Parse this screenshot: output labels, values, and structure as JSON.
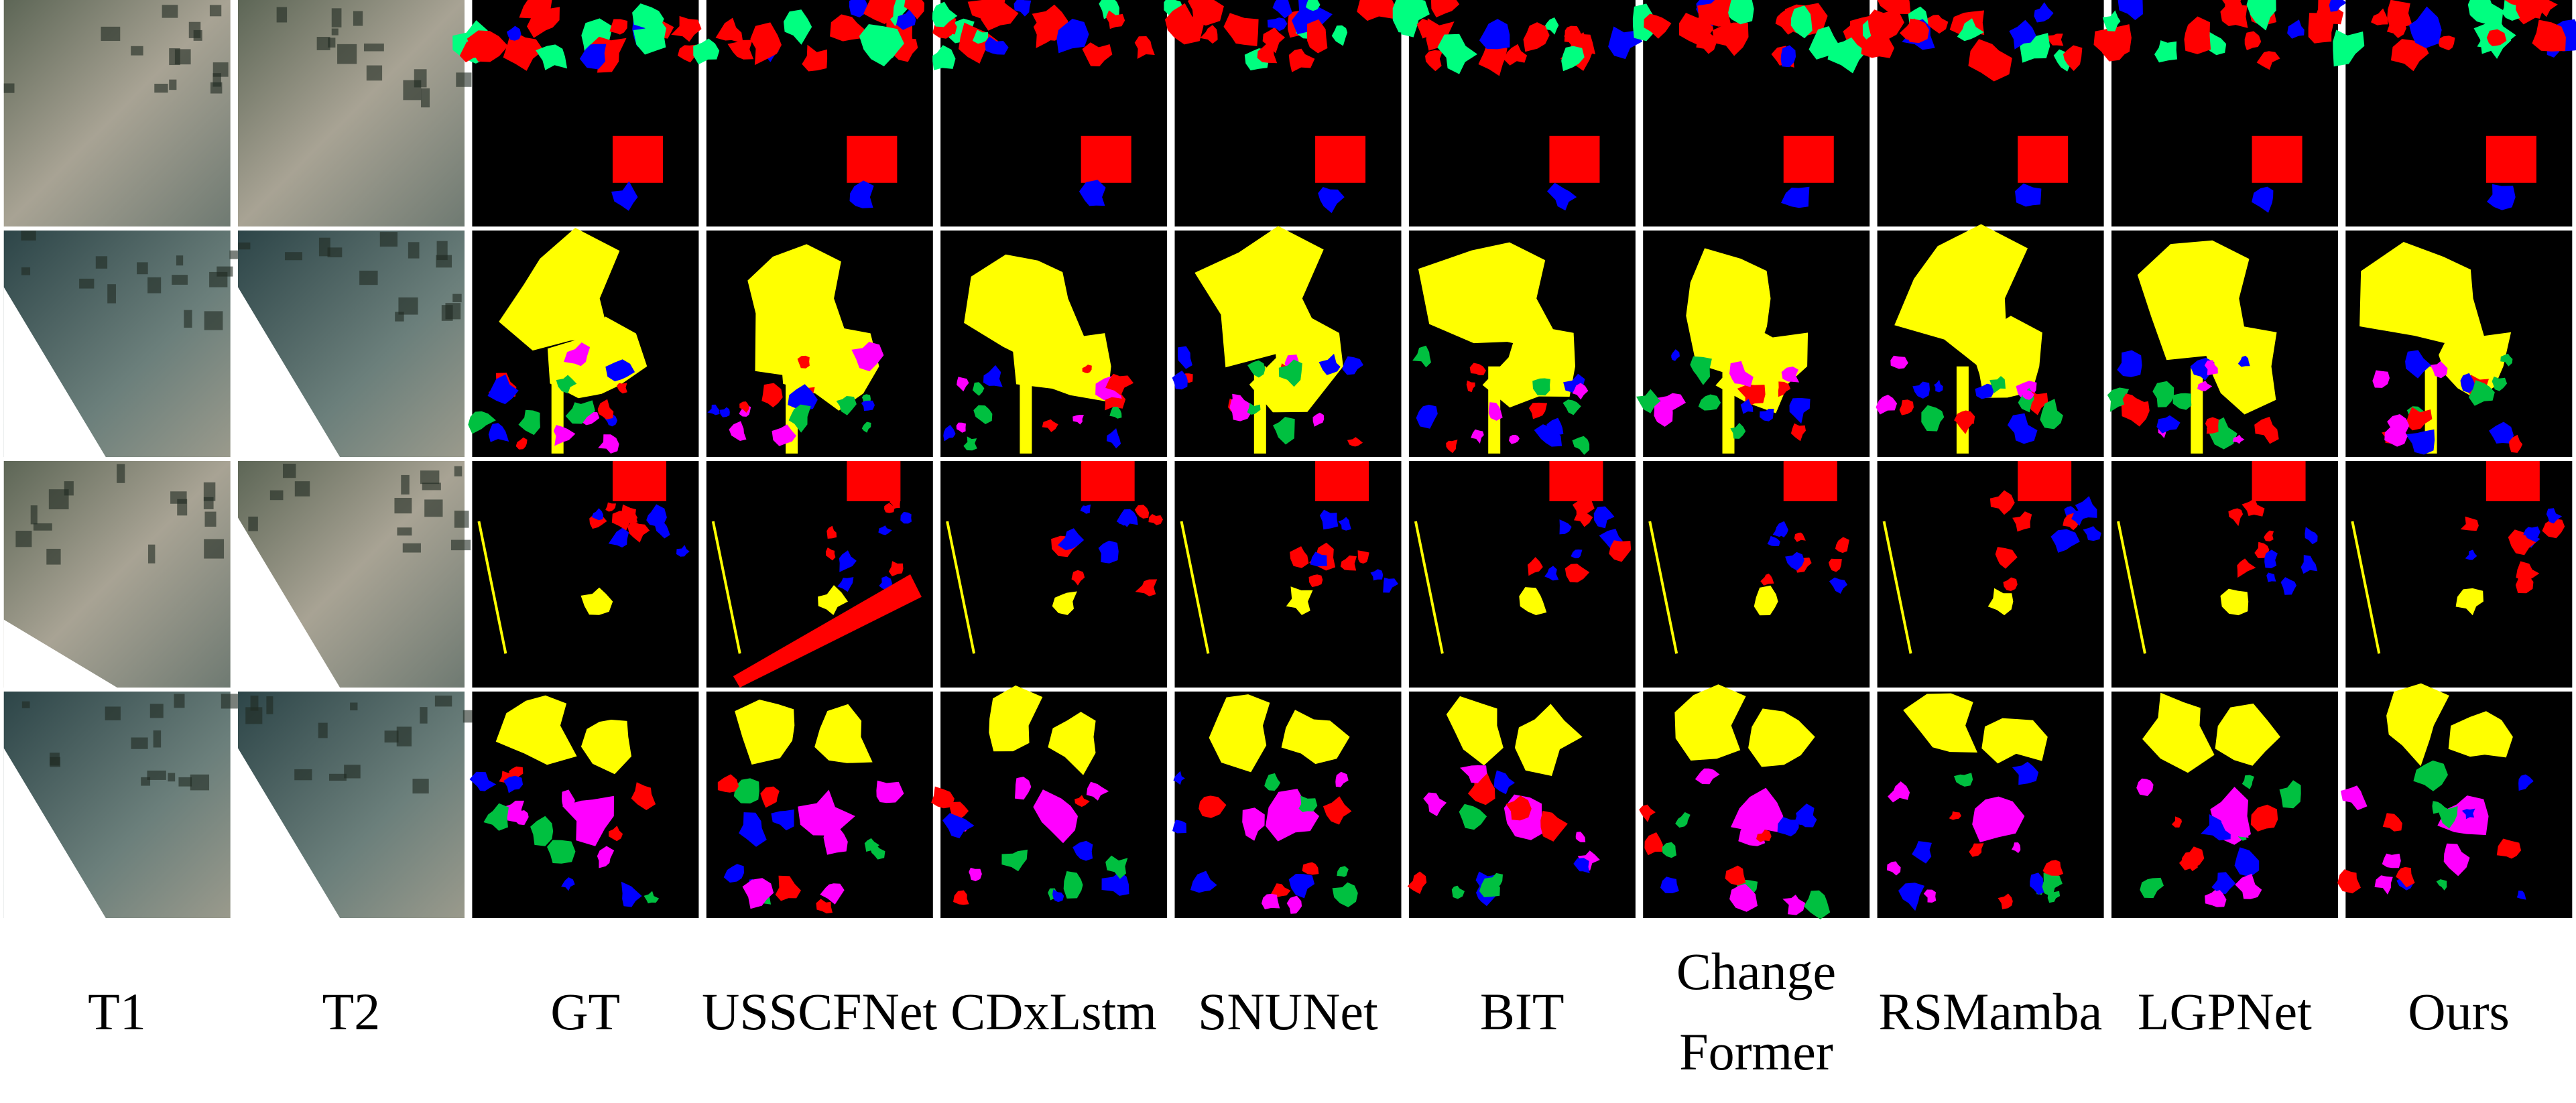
{
  "columns": [
    "T1",
    "T2",
    "GT",
    "USSCFNet",
    "CDxLstm",
    "SNUNet",
    "BIT",
    "Change Former",
    "RSMamba",
    "LGPNet",
    "Ours"
  ]
}
